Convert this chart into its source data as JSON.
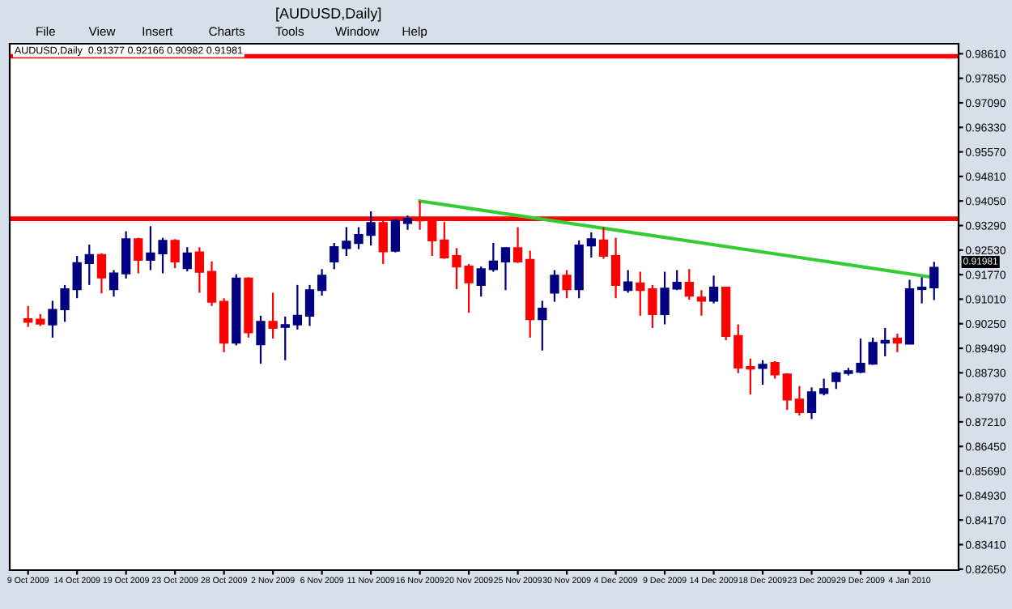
{
  "chart_data": {
    "type": "candlestick",
    "title": "[AUDUSD,Daily]",
    "subtitle": "AUDUSD,Daily  0.91377 0.92166 0.90982 0.91981",
    "categories": [
      "9 Oct 2009",
      null,
      null,
      null,
      "14 Oct 2009",
      null,
      null,
      null,
      "19 Oct 2009",
      null,
      null,
      null,
      "23 Oct 2009",
      null,
      null,
      null,
      "28 Oct 2009",
      null,
      null,
      null,
      "2 Nov 2009",
      null,
      null,
      null,
      "6 Nov 2009",
      null,
      null,
      null,
      "11 Nov 2009",
      null,
      null,
      null,
      "16 Nov 2009",
      null,
      null,
      null,
      "20 Nov 2009",
      null,
      null,
      null,
      "25 Nov 2009",
      null,
      null,
      null,
      "30 Nov 2009",
      null,
      null,
      null,
      "4 Dec 2009",
      null,
      null,
      null,
      "9 Dec 2009",
      null,
      null,
      null,
      "14 Dec 2009",
      null,
      null,
      null,
      "18 Dec 2009",
      null,
      null,
      null,
      "23 Dec 2009",
      null,
      null,
      null,
      "29 Dec 2009",
      null,
      null,
      null,
      "4 Jan 2010",
      null,
      null
    ],
    "ohlc": [
      [
        0.9039,
        0.908,
        0.9015,
        0.9031
      ],
      [
        0.9038,
        0.9055,
        0.9018,
        0.9025
      ],
      [
        0.9023,
        0.9096,
        0.8982,
        0.9068
      ],
      [
        0.907,
        0.9145,
        0.9031,
        0.9132
      ],
      [
        0.9132,
        0.9235,
        0.9104,
        0.9213
      ],
      [
        0.9213,
        0.927,
        0.9145,
        0.9238
      ],
      [
        0.9238,
        0.9243,
        0.9119,
        0.9168
      ],
      [
        0.9132,
        0.9191,
        0.9109,
        0.9181
      ],
      [
        0.9181,
        0.9311,
        0.9165,
        0.9287
      ],
      [
        0.9287,
        0.9291,
        0.9181,
        0.9223
      ],
      [
        0.9223,
        0.9327,
        0.9191,
        0.9243
      ],
      [
        0.9243,
        0.9291,
        0.9181,
        0.9282
      ],
      [
        0.9282,
        0.9287,
        0.9197,
        0.9218
      ],
      [
        0.9197,
        0.9262,
        0.9187,
        0.9243
      ],
      [
        0.9246,
        0.9262,
        0.9121,
        0.9186
      ],
      [
        0.9186,
        0.9218,
        0.908,
        0.9093
      ],
      [
        0.9093,
        0.9104,
        0.8937,
        0.8966
      ],
      [
        0.8966,
        0.9178,
        0.8958,
        0.9165
      ],
      [
        0.9165,
        0.9169,
        0.8982,
        0.8998
      ],
      [
        0.8961,
        0.905,
        0.8901,
        0.9031
      ],
      [
        0.9031,
        0.9121,
        0.8979,
        0.9012
      ],
      [
        0.9015,
        0.9047,
        0.8912,
        0.9021
      ],
      [
        0.9023,
        0.9145,
        0.9007,
        0.905
      ],
      [
        0.905,
        0.9145,
        0.9018,
        0.9129
      ],
      [
        0.9129,
        0.9194,
        0.9112,
        0.9174
      ],
      [
        0.9218,
        0.9275,
        0.9194,
        0.9262
      ],
      [
        0.9259,
        0.9324,
        0.9235,
        0.9279
      ],
      [
        0.9275,
        0.9324,
        0.9256,
        0.93
      ],
      [
        0.93,
        0.9373,
        0.9267,
        0.9337
      ],
      [
        0.9337,
        0.9349,
        0.921,
        0.9249
      ],
      [
        0.9251,
        0.9349,
        0.9246,
        0.9344
      ],
      [
        0.9337,
        0.936,
        0.9316,
        0.935
      ],
      [
        0.9349,
        0.9405,
        0.9316,
        0.9345
      ],
      [
        0.9349,
        0.9349,
        0.9235,
        0.9283
      ],
      [
        0.9283,
        0.934,
        0.9226,
        0.923
      ],
      [
        0.9235,
        0.9259,
        0.9132,
        0.9202
      ],
      [
        0.9202,
        0.921,
        0.9059,
        0.9153
      ],
      [
        0.9145,
        0.9202,
        0.9109,
        0.9194
      ],
      [
        0.9194,
        0.9275,
        0.9186,
        0.9218
      ],
      [
        0.9218,
        0.9262,
        0.9129,
        0.9259
      ],
      [
        0.9259,
        0.9324,
        0.9213,
        0.9218
      ],
      [
        0.9223,
        0.9251,
        0.8982,
        0.9039
      ],
      [
        0.9039,
        0.9096,
        0.8942,
        0.9072
      ],
      [
        0.9121,
        0.9191,
        0.9093,
        0.9174
      ],
      [
        0.9174,
        0.9191,
        0.9104,
        0.9132
      ],
      [
        0.9132,
        0.9283,
        0.9104,
        0.9267
      ],
      [
        0.9267,
        0.9308,
        0.923,
        0.9287
      ],
      [
        0.9283,
        0.9324,
        0.9226,
        0.9235
      ],
      [
        0.9235,
        0.9291,
        0.9104,
        0.9145
      ],
      [
        0.9129,
        0.9191,
        0.9121,
        0.9153
      ],
      [
        0.915,
        0.9186,
        0.905,
        0.9129
      ],
      [
        0.9132,
        0.9145,
        0.9012,
        0.9055
      ],
      [
        0.9055,
        0.9186,
        0.9023,
        0.9134
      ],
      [
        0.9134,
        0.9191,
        0.9129,
        0.9152
      ],
      [
        0.9152,
        0.9194,
        0.9099,
        0.9112
      ],
      [
        0.9106,
        0.9129,
        0.905,
        0.9096
      ],
      [
        0.9096,
        0.9174,
        0.9088,
        0.9137
      ],
      [
        0.9137,
        0.9137,
        0.8974,
        0.8987
      ],
      [
        0.8987,
        0.9023,
        0.8872,
        0.8889
      ],
      [
        0.8891,
        0.8917,
        0.8806,
        0.8886
      ],
      [
        0.8888,
        0.8912,
        0.8836,
        0.8898
      ],
      [
        0.8904,
        0.8909,
        0.8855,
        0.8868
      ],
      [
        0.8868,
        0.8872,
        0.8758,
        0.879
      ],
      [
        0.879,
        0.8832,
        0.8741,
        0.8751
      ],
      [
        0.8751,
        0.8828,
        0.873,
        0.8813
      ],
      [
        0.881,
        0.8855,
        0.8803,
        0.8823
      ],
      [
        0.8847,
        0.8876,
        0.8823,
        0.8872
      ],
      [
        0.8872,
        0.8888,
        0.8865,
        0.8878
      ],
      [
        0.8876,
        0.8979,
        0.8872,
        0.8901
      ],
      [
        0.8901,
        0.8982,
        0.8898,
        0.8966
      ],
      [
        0.8966,
        0.9012,
        0.8924,
        0.8972
      ],
      [
        0.8979,
        0.8994,
        0.8937,
        0.8966
      ],
      [
        0.8963,
        0.9161,
        0.8963,
        0.9132
      ],
      [
        0.9132,
        0.9169,
        0.9088,
        0.9137
      ],
      [
        0.91377,
        0.92166,
        0.90982,
        0.91981
      ]
    ],
    "colors": [
      "#ff0000",
      "#ff0000",
      "#000080",
      "#000080",
      "#000080",
      "#000080",
      "#ff0000",
      "#000080",
      "#000080",
      "#ff0000",
      "#000080",
      "#000080",
      "#ff0000",
      "#000080",
      "#ff0000",
      "#ff0000",
      "#ff0000",
      "#000080",
      "#ff0000",
      "#000080",
      "#ff0000",
      "#000080",
      "#000080",
      "#000080",
      "#000080",
      "#000080",
      "#000080",
      "#000080",
      "#000080",
      "#ff0000",
      "#000080",
      "#000080",
      "#ff0000",
      "#ff0000",
      "#ff0000",
      "#ff0000",
      "#ff0000",
      "#000080",
      "#000080",
      "#000080",
      "#ff0000",
      "#ff0000",
      "#000080",
      "#000080",
      "#ff0000",
      "#000080",
      "#000080",
      "#ff0000",
      "#ff0000",
      "#000080",
      "#ff0000",
      "#ff0000",
      "#000080",
      "#000080",
      "#ff0000",
      "#ff0000",
      "#000080",
      "#ff0000",
      "#ff0000",
      "#ff0000",
      "#000080",
      "#ff0000",
      "#ff0000",
      "#ff0000",
      "#000080",
      "#000080",
      "#000080",
      "#000080",
      "#000080",
      "#000080",
      "#000080",
      "#ff0000",
      "#000080",
      "#000080",
      "#000080"
    ],
    "series": [
      {
        "type": "line",
        "color": "#33cc33",
        "values": [
          null,
          null,
          null,
          null,
          null,
          null,
          null,
          null,
          null,
          null,
          null,
          null,
          null,
          null,
          null,
          null,
          null,
          null,
          null,
          null,
          null,
          null,
          null,
          null,
          null,
          null,
          null,
          null,
          null,
          null,
          null,
          null,
          0.9405,
          null,
          null,
          null,
          null,
          null,
          null,
          null,
          null,
          null,
          null,
          null,
          null,
          null,
          null,
          null,
          null,
          null,
          null,
          null,
          null,
          null,
          null,
          null,
          null,
          null,
          null,
          null,
          null,
          null,
          null,
          null,
          null,
          null,
          null,
          null,
          null,
          null,
          null,
          null,
          null,
          null,
          0.9168
        ]
      }
    ],
    "ylim": [
      0.8262,
      0.9892
    ],
    "yticks": [
      {
        "value": 0.8265,
        "label": "0.82650"
      },
      {
        "value": 0.8341,
        "label": "0.83410"
      },
      {
        "value": 0.8417,
        "label": "0.84170"
      },
      {
        "value": 0.8493,
        "label": "0.84930"
      },
      {
        "value": 0.8569,
        "label": "0.85690"
      },
      {
        "value": 0.8645,
        "label": "0.86450"
      },
      {
        "value": 0.8721,
        "label": "0.87210"
      },
      {
        "value": 0.8797,
        "label": "0.87970"
      },
      {
        "value": 0.8873,
        "label": "0.88730"
      },
      {
        "value": 0.8949,
        "label": "0.89490"
      },
      {
        "value": 0.9025,
        "label": "0.90250"
      },
      {
        "value": 0.9101,
        "label": "0.91010"
      },
      {
        "value": 0.9177,
        "label": "0.91770"
      },
      {
        "value": 0.9253,
        "label": "0.92530"
      },
      {
        "value": 0.9329,
        "label": "0.93290"
      },
      {
        "value": 0.9405,
        "label": "0.94050"
      },
      {
        "value": 0.9481,
        "label": "0.94810"
      },
      {
        "value": 0.9557,
        "label": "0.95570"
      },
      {
        "value": 0.9633,
        "label": "0.96330"
      },
      {
        "value": 0.9709,
        "label": "0.97090"
      },
      {
        "value": 0.9785,
        "label": "0.97850"
      },
      {
        "value": 0.9861,
        "label": "0.98610"
      }
    ],
    "ref_lines": [
      {
        "axis": "y",
        "value": 0.9853,
        "color": "#ff0000"
      },
      {
        "axis": "y",
        "value": 0.935,
        "color": "#ff0000"
      }
    ],
    "annotations": [
      "File",
      "View",
      "Insert",
      "Charts",
      "Tools",
      "Window",
      "Help",
      "0.91981"
    ],
    "grid": false
  }
}
